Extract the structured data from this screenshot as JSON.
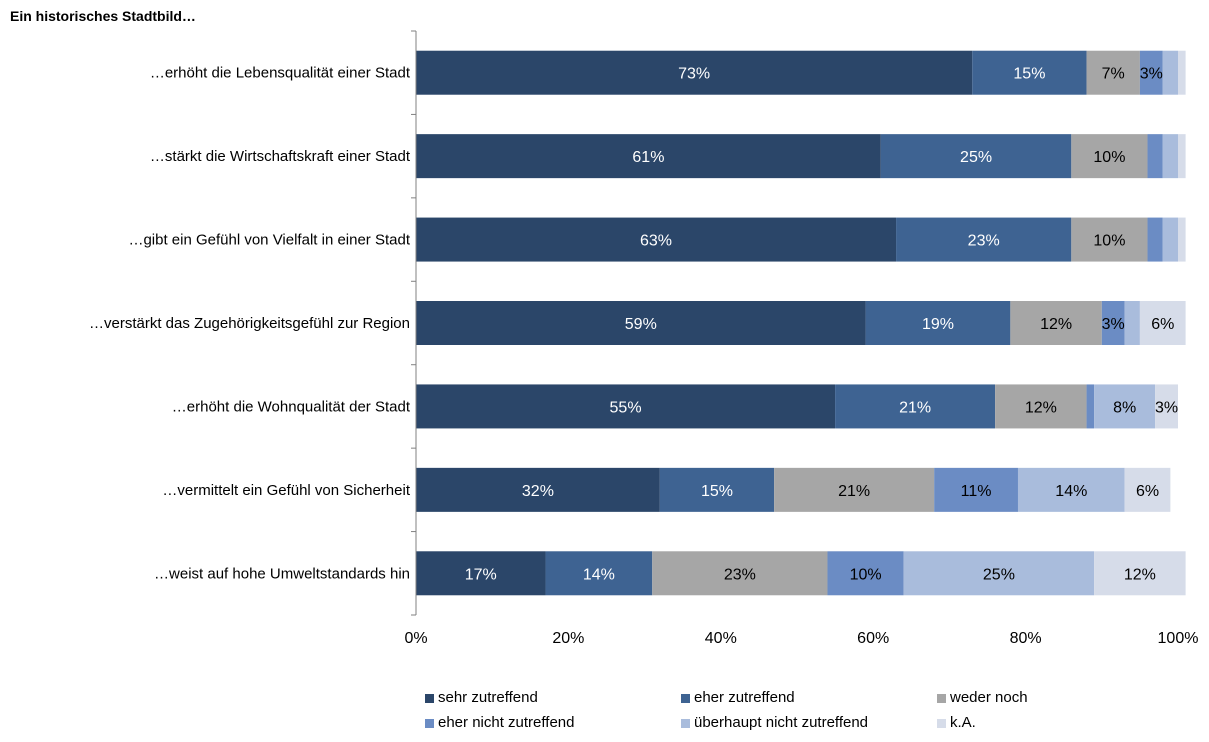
{
  "chart_data": {
    "type": "bar",
    "orientation": "horizontal",
    "stacked": true,
    "title": "Ein historisches Stadtbild…",
    "categories": [
      "…erhöht die Lebensqualität einer Stadt",
      "…stärkt die Wirtschaftskraft einer Stadt",
      "…gibt ein Gefühl von Vielfalt in einer Stadt",
      "…verstärkt das Zugehörigkeitsgefühl zur Region",
      "…erhöht die Wohnqualität der Stadt",
      "…vermittelt ein Gefühl von Sicherheit",
      "…weist auf hohe Umweltstandards hin"
    ],
    "series": [
      {
        "name": "sehr zutreffend",
        "color": "#2b4669",
        "label_color": "#ffffff",
        "values": [
          73,
          61,
          63,
          59,
          55,
          32,
          17
        ]
      },
      {
        "name": "eher zutreffend",
        "color": "#3e6392",
        "label_color": "#ffffff",
        "values": [
          15,
          25,
          23,
          19,
          21,
          15,
          14
        ]
      },
      {
        "name": "weder noch",
        "color": "#a6a6a6",
        "label_color": "#000000",
        "values": [
          7,
          10,
          10,
          12,
          12,
          21,
          23
        ]
      },
      {
        "name": "eher nicht zutreffend",
        "color": "#6b8cc4",
        "label_color": "#000000",
        "values": [
          3,
          2,
          2,
          3,
          1,
          11,
          10
        ]
      },
      {
        "name": "überhaupt nicht zutreffend",
        "color": "#a9bcdc",
        "label_color": "#000000",
        "values": [
          2,
          2,
          2,
          2,
          8,
          14,
          25
        ]
      },
      {
        "name": "k.A.",
        "color": "#d6dce9",
        "label_color": "#000000",
        "values": [
          1,
          1,
          1,
          6,
          3,
          6,
          12
        ]
      }
    ],
    "data_labels": [
      [
        "73%",
        "15%",
        "7%",
        "3%",
        "",
        ""
      ],
      [
        "61%",
        "25%",
        "10%",
        "",
        "",
        ""
      ],
      [
        "63%",
        "23%",
        "10%",
        "",
        "",
        ""
      ],
      [
        "59%",
        "19%",
        "12%",
        "3%",
        "",
        "6%"
      ],
      [
        "55%",
        "21%",
        "12%",
        "",
        "8%",
        "3%"
      ],
      [
        "32%",
        "15%",
        "21%",
        "11%",
        "14%",
        "6%"
      ],
      [
        "17%",
        "14%",
        "23%",
        "10%",
        "25%",
        "12%"
      ]
    ],
    "x_ticks": [
      "0%",
      "20%",
      "40%",
      "60%",
      "80%",
      "100%"
    ],
    "xlim": [
      0,
      100
    ],
    "grid": false,
    "legend_position": "bottom"
  }
}
